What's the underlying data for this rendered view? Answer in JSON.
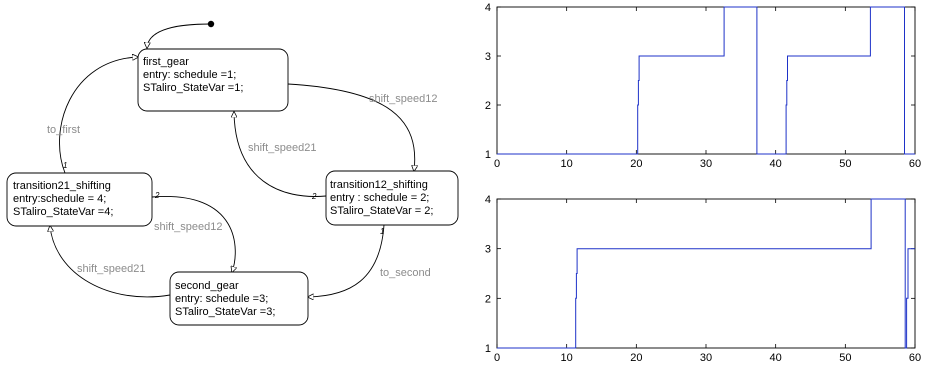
{
  "states": {
    "first_gear": [
      "first_gear",
      "entry: schedule =1;",
      "STaliro_StateVar =1;"
    ],
    "transition21_shifting": [
      "transition21_shifting",
      "entry:schedule = 4;",
      "STaliro_StateVar =4;"
    ],
    "transition12_shifting": [
      "transition12_shifting",
      "entry : schedule = 2;",
      "STaliro_StateVar = 2;"
    ],
    "second_gear": [
      "second_gear",
      "entry: schedule =3;",
      "STaliro_StateVar =3;"
    ]
  },
  "edges": {
    "to_first": "to_first",
    "shift_speed12_top": "shift_speed12",
    "shift_speed21_top": "shift_speed21",
    "shift_speed12_mid": "shift_speed12",
    "shift_speed21_bottom": "shift_speed21",
    "to_second": "to_second"
  },
  "priorities": {
    "t21_up": "1",
    "t21_right": "2",
    "t12_left": "2",
    "t12_down": "1"
  },
  "colors": {
    "series": "#1e32c8"
  },
  "chart_data": [
    {
      "type": "line",
      "x_ticks": [
        "0",
        "10",
        "20",
        "30",
        "40",
        "50",
        "60"
      ],
      "y_ticks": [
        "1",
        "2",
        "3",
        "4"
      ],
      "xlim": [
        0,
        60
      ],
      "ylim": [
        1,
        4
      ],
      "series": [
        {
          "x": [
            0,
            20.2,
            20.2,
            20.3,
            20.3,
            20.4,
            20.4,
            32.6,
            32.6,
            37.3,
            37.3,
            41.5,
            41.5,
            41.6,
            41.6,
            41.7,
            41.7,
            53.6,
            53.6,
            58.5,
            58.5,
            60
          ],
          "y": [
            1,
            1,
            2,
            2,
            2.5,
            2.5,
            3,
            3,
            4,
            4,
            1,
            1,
            2,
            2,
            2.5,
            2.5,
            3,
            3,
            4,
            4,
            1,
            1
          ]
        }
      ]
    },
    {
      "type": "line",
      "x_ticks": [
        "0",
        "10",
        "20",
        "30",
        "40",
        "50",
        "60"
      ],
      "y_ticks": [
        "1",
        "2",
        "3",
        "4"
      ],
      "xlim": [
        0,
        60
      ],
      "ylim": [
        1,
        4
      ],
      "series": [
        {
          "x": [
            0,
            11.3,
            11.3,
            11.4,
            11.4,
            11.5,
            11.5,
            53.7,
            53.7,
            58.6,
            58.6,
            58.8,
            58.8,
            59.0,
            59.0,
            60
          ],
          "y": [
            1,
            1,
            2,
            2,
            2.5,
            2.5,
            3,
            3,
            4,
            4,
            1,
            1,
            2,
            2,
            3,
            3
          ]
        }
      ]
    }
  ]
}
